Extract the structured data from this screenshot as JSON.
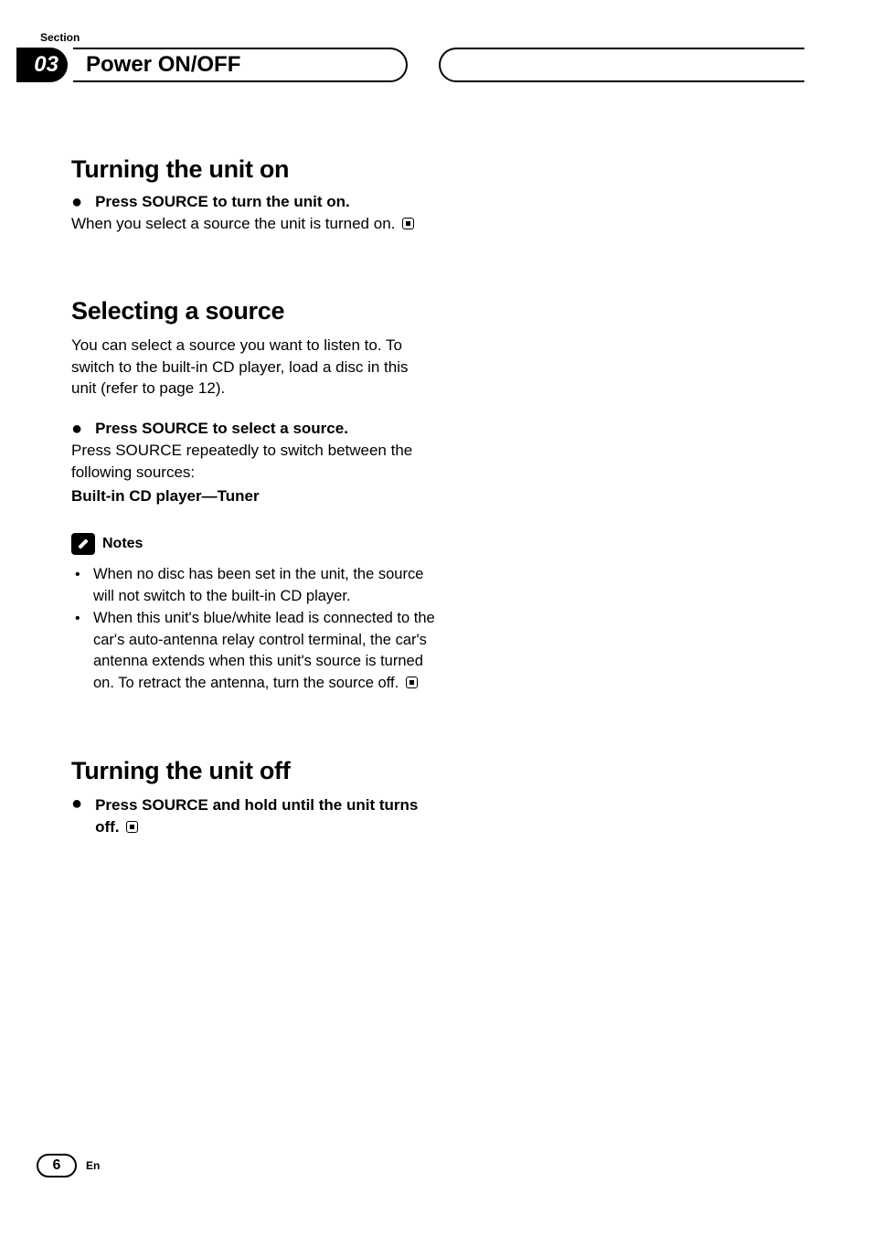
{
  "section_label": "Section",
  "section_number": "03",
  "header_title": "Power ON/OFF",
  "sections": {
    "s1": {
      "heading": "Turning the unit on",
      "step": "Press SOURCE to turn the unit on.",
      "body": "When you select a source the unit is turned on."
    },
    "s2": {
      "heading": "Selecting a source",
      "intro": "You can select a source you want to listen to. To switch to the built-in CD player, load a disc in this unit (refer to page 12).",
      "step": "Press SOURCE to select a source.",
      "body_pre": "Press ",
      "body_bold": "SOURCE",
      "body_post": " repeatedly to switch between the following sources:",
      "sources": "Built-in CD player—Tuner",
      "notes_label": "Notes",
      "note1": "When no disc has been set in the unit, the source will not switch to the built-in CD player.",
      "note2": "When this unit's blue/white lead is connected to the car's auto-antenna relay control terminal, the car's antenna extends when this unit's source is turned on. To retract the antenna, turn the source off."
    },
    "s3": {
      "heading": "Turning the unit off",
      "step": "Press SOURCE and hold until the unit turns off."
    }
  },
  "page_number": "6",
  "language": "En",
  "colors": {
    "text": "#000000",
    "background": "#ffffff"
  }
}
